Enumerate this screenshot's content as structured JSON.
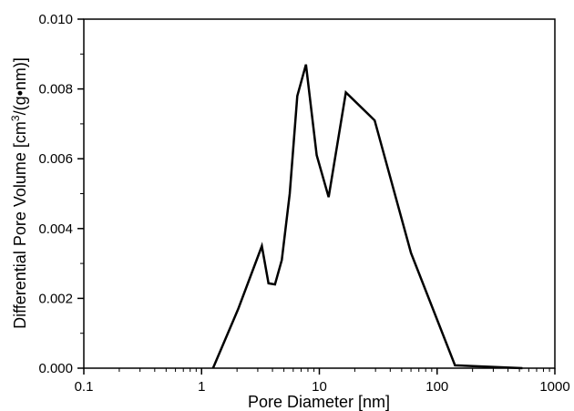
{
  "chart_data": {
    "type": "line",
    "title": "",
    "xlabel": "Pore Diameter [nm]",
    "ylabel_prefix": "Differential Pore Volume [cm",
    "ylabel_sup": "3",
    "ylabel_suffix": "/(g•nm)]",
    "xscale": "log",
    "xlim": [
      0.1,
      1000
    ],
    "ylim": [
      0.0,
      0.01
    ],
    "grid": false,
    "legend": "none",
    "xticks": [
      0.1,
      1,
      10,
      100,
      1000
    ],
    "xtick_labels": [
      "0.1",
      "1",
      "10",
      "100",
      "1000"
    ],
    "yticks": [
      0.0,
      0.002,
      0.004,
      0.006,
      0.008,
      0.01
    ],
    "ytick_labels": [
      "0.000",
      "0.002",
      "0.004",
      "0.006",
      "0.008",
      "0.010"
    ],
    "series": [
      {
        "color": "#000000",
        "x": [
          1.25,
          2.05,
          3.25,
          3.7,
          4.2,
          4.8,
          5.6,
          6.5,
          7.7,
          9.5,
          12.0,
          16.8,
          29.5,
          60.0,
          142.0,
          530.0
        ],
        "y": [
          0.0,
          0.0017,
          0.0035,
          0.00243,
          0.0024,
          0.0031,
          0.005,
          0.0078,
          0.0087,
          0.0061,
          0.0049,
          0.0079,
          0.0071,
          0.0033,
          8e-05,
          0.0
        ]
      }
    ]
  }
}
